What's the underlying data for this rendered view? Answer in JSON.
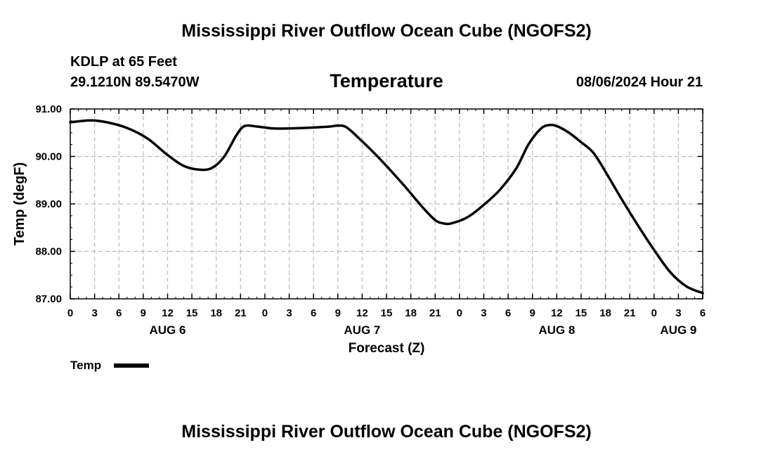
{
  "header": {
    "title": "Mississippi River Outflow Ocean Cube (NGOFS2)",
    "station": "KDLP at 65 Feet",
    "coords": "29.1210N  89.5470W",
    "timestamp": "08/06/2024 Hour 21",
    "footer_title": "Mississippi River Outflow Ocean Cube (NGOFS2)"
  },
  "chart_data": {
    "type": "line",
    "title": "Temperature",
    "xlabel": "Forecast (Z)",
    "ylabel": "Temp (degF)",
    "ylim": [
      87.0,
      91.0
    ],
    "xlim": [
      0,
      78
    ],
    "x_unit": "hours since Aug 6 00Z",
    "grid": true,
    "legend_position": "bottom-left",
    "y_ticks": [
      {
        "value": 87.0,
        "label": "87.00"
      },
      {
        "value": 88.0,
        "label": "88.00"
      },
      {
        "value": 89.0,
        "label": "89.00"
      },
      {
        "value": 90.0,
        "label": "90.00"
      },
      {
        "value": 91.0,
        "label": "91.00"
      }
    ],
    "x_ticks": [
      {
        "hour": 0,
        "label": "0"
      },
      {
        "hour": 3,
        "label": "3"
      },
      {
        "hour": 6,
        "label": "6"
      },
      {
        "hour": 9,
        "label": "9"
      },
      {
        "hour": 12,
        "label": "12"
      },
      {
        "hour": 15,
        "label": "15"
      },
      {
        "hour": 18,
        "label": "18"
      },
      {
        "hour": 21,
        "label": "21"
      },
      {
        "hour": 24,
        "label": "0"
      },
      {
        "hour": 27,
        "label": "3"
      },
      {
        "hour": 30,
        "label": "6"
      },
      {
        "hour": 33,
        "label": "9"
      },
      {
        "hour": 36,
        "label": "12"
      },
      {
        "hour": 39,
        "label": "15"
      },
      {
        "hour": 42,
        "label": "18"
      },
      {
        "hour": 45,
        "label": "21"
      },
      {
        "hour": 48,
        "label": "0"
      },
      {
        "hour": 51,
        "label": "3"
      },
      {
        "hour": 54,
        "label": "6"
      },
      {
        "hour": 57,
        "label": "9"
      },
      {
        "hour": 60,
        "label": "12"
      },
      {
        "hour": 63,
        "label": "15"
      },
      {
        "hour": 66,
        "label": "18"
      },
      {
        "hour": 69,
        "label": "21"
      },
      {
        "hour": 72,
        "label": "0"
      },
      {
        "hour": 75,
        "label": "3"
      },
      {
        "hour": 78,
        "label": "6"
      }
    ],
    "day_labels": [
      {
        "hour": 12,
        "label": "AUG 6"
      },
      {
        "hour": 36,
        "label": "AUG 7"
      },
      {
        "hour": 60,
        "label": "AUG 8"
      },
      {
        "hour": 75,
        "label": "AUG 9"
      }
    ],
    "series": [
      {
        "name": "Temp",
        "color": "#000000",
        "points": [
          [
            0,
            90.72
          ],
          [
            2.5,
            90.76
          ],
          [
            4.5,
            90.72
          ],
          [
            7,
            90.6
          ],
          [
            9.5,
            90.38
          ],
          [
            12,
            90.03
          ],
          [
            14,
            89.8
          ],
          [
            16,
            89.72
          ],
          [
            17.5,
            89.76
          ],
          [
            19,
            90.0
          ],
          [
            20.5,
            90.45
          ],
          [
            21.5,
            90.64
          ],
          [
            23,
            90.63
          ],
          [
            25,
            90.59
          ],
          [
            27,
            90.59
          ],
          [
            30,
            90.61
          ],
          [
            32,
            90.63
          ],
          [
            33,
            90.65
          ],
          [
            34,
            90.62
          ],
          [
            35.5,
            90.4
          ],
          [
            38,
            89.98
          ],
          [
            41,
            89.42
          ],
          [
            43.5,
            88.92
          ],
          [
            45,
            88.66
          ],
          [
            46,
            88.59
          ],
          [
            47,
            88.59
          ],
          [
            49,
            88.72
          ],
          [
            51,
            88.98
          ],
          [
            53,
            89.3
          ],
          [
            55,
            89.75
          ],
          [
            56.5,
            90.25
          ],
          [
            58,
            90.58
          ],
          [
            59,
            90.66
          ],
          [
            60,
            90.64
          ],
          [
            61.5,
            90.5
          ],
          [
            63,
            90.3
          ],
          [
            64.5,
            90.08
          ],
          [
            66,
            89.68
          ],
          [
            68,
            89.1
          ],
          [
            70,
            88.55
          ],
          [
            72,
            88.03
          ],
          [
            74,
            87.56
          ],
          [
            76,
            87.26
          ],
          [
            78,
            87.12
          ]
        ]
      }
    ]
  }
}
